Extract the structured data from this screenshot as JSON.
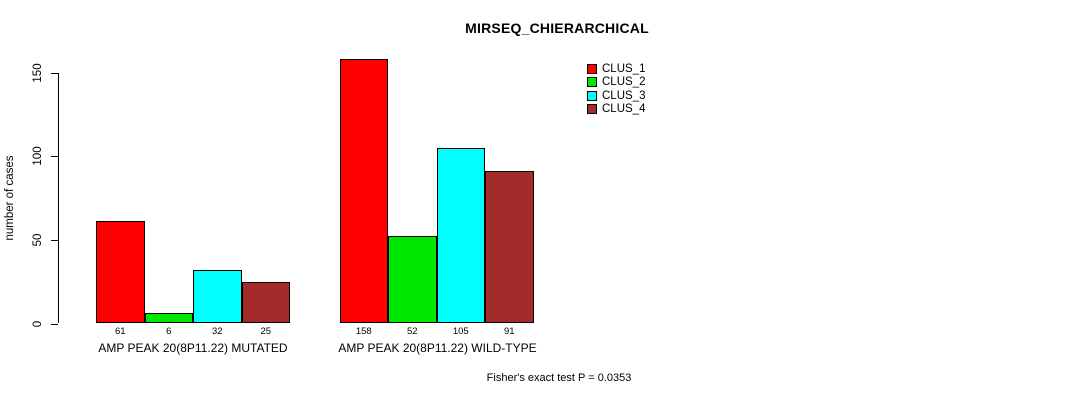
{
  "figure": {
    "title": "MIRSEQ_CHIERARCHICAL",
    "y_axis_label": "number of cases",
    "annotation": "Fisher's exact test P = 0.0353"
  },
  "legend": {
    "items": [
      {
        "label": "CLUS_1",
        "color": "#FF0000"
      },
      {
        "label": "CLUS_2",
        "color": "#00E800"
      },
      {
        "label": "CLUS_3",
        "color": "#00FFFF"
      },
      {
        "label": "CLUS_4",
        "color": "#A52A2A"
      }
    ]
  },
  "chart_data": {
    "type": "bar",
    "title": "MIRSEQ_CHIERARCHICAL",
    "xlabel": "",
    "ylabel": "number of cases",
    "ylim": [
      0,
      165
    ],
    "y_ticks": [
      0,
      50,
      100,
      150
    ],
    "grid": false,
    "legend_position": "top-right",
    "bar_value_labels": true,
    "categories": [
      "AMP PEAK 20(8P11.22) MUTATED",
      "AMP PEAK 20(8P11.22) WILD-TYPE"
    ],
    "series": [
      {
        "name": "CLUS_1",
        "color": "#FF0000",
        "values": [
          61,
          158
        ]
      },
      {
        "name": "CLUS_2",
        "color": "#00E800",
        "values": [
          6,
          52
        ]
      },
      {
        "name": "CLUS_3",
        "color": "#00FFFF",
        "values": [
          32,
          105
        ]
      },
      {
        "name": "CLUS_4",
        "color": "#A52A2A",
        "values": [
          25,
          91
        ]
      }
    ],
    "annotation": "Fisher's exact test P = 0.0353"
  }
}
